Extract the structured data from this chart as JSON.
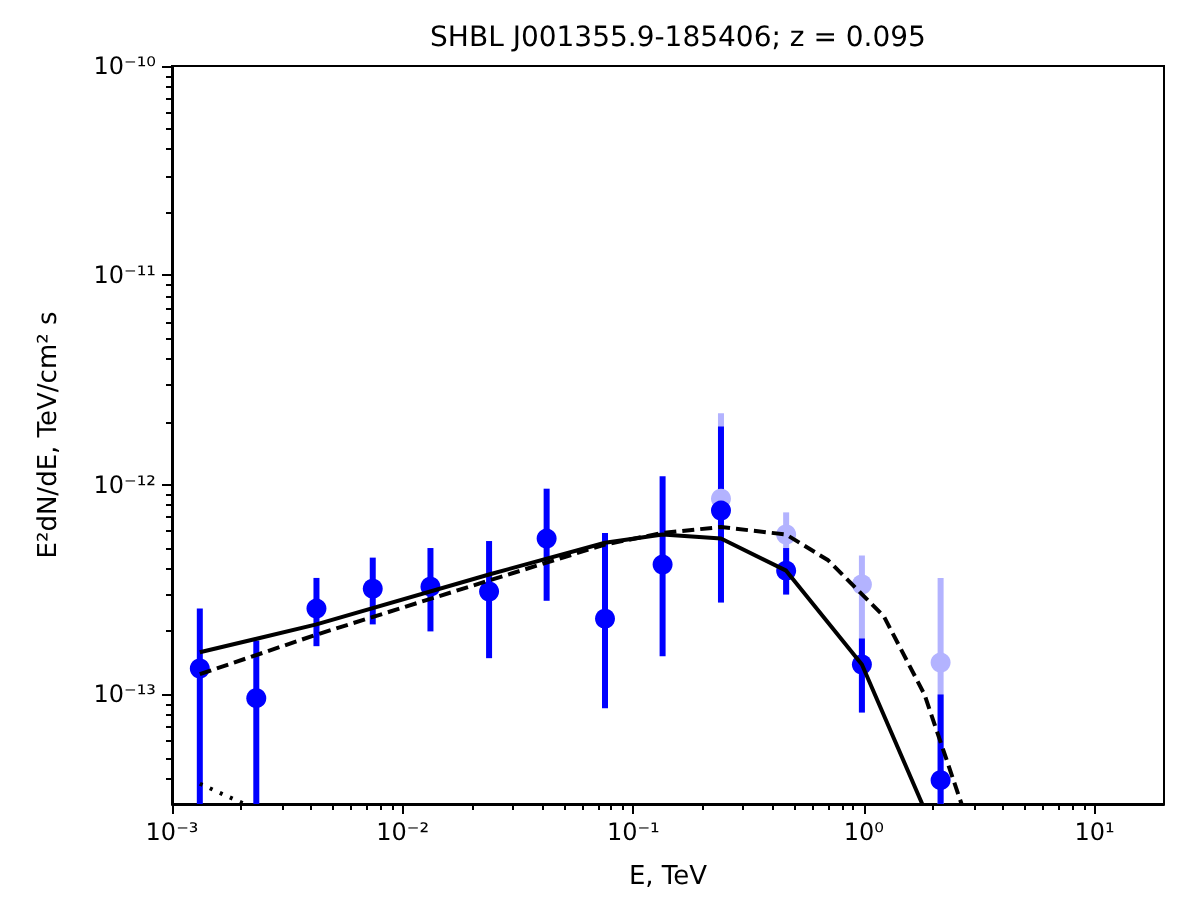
{
  "chart_data": {
    "type": "scatter",
    "title": "SHBL J001355.9-185406; z = 0.095",
    "xlabel": "E, TeV",
    "ylabel": "E²dN/dE, TeV/cm² s",
    "log": "xy",
    "grid": false,
    "xlim": [
      0.001,
      20
    ],
    "ylim": [
      3e-14,
      1e-10
    ],
    "xticks": [
      {
        "value": 0.001,
        "label": "10⁻³"
      },
      {
        "value": 0.01,
        "label": "10⁻²"
      },
      {
        "value": 0.1,
        "label": "10⁻¹"
      },
      {
        "value": 1,
        "label": "10⁰"
      },
      {
        "value": 10,
        "label": "10¹"
      }
    ],
    "yticks": [
      {
        "value": 1e-13,
        "label": "10⁻¹³"
      },
      {
        "value": 1e-12,
        "label": "10⁻¹²"
      },
      {
        "value": 1e-11,
        "label": "10⁻¹¹"
      },
      {
        "value": 1e-10,
        "label": "10⁻¹⁰"
      }
    ],
    "series": [
      {
        "color": "#b3b3ff",
        "marker": "circle",
        "x": [
          0.24,
          0.46,
          0.98,
          2.15
        ],
        "values": [
          8.6e-13,
          5.8e-13,
          3.35e-13,
          1.42e-13
        ],
        "errors": [
          [
            2.75e-13,
            2.2e-12
          ],
          [
            3e-13,
            7.4e-13
          ],
          [
            8.2e-14,
            4.6e-13
          ],
          [
            3e-14,
            3.6e-13
          ]
        ]
      },
      {
        "color": "#0000ff",
        "marker": "circle",
        "x": [
          0.00132,
          0.00232,
          0.00423,
          0.00742,
          0.0132,
          0.0237,
          0.0421,
          0.0754,
          0.134,
          0.24,
          0.46,
          0.98,
          2.15
        ],
        "values": [
          1.33e-13,
          9.6e-14,
          2.57e-13,
          3.2e-13,
          3.27e-13,
          3.1e-13,
          5.55e-13,
          2.3e-13,
          4.17e-13,
          7.55e-13,
          3.9e-13,
          1.39e-13,
          3.9e-14
        ],
        "errors": [
          [
            3e-14,
            2.57e-13
          ],
          [
            3e-14,
            1.81e-13
          ],
          [
            1.7e-13,
            3.6e-13
          ],
          [
            2.16e-13,
            4.5e-13
          ],
          [
            2e-13,
            5e-13
          ],
          [
            1.49e-13,
            5.4e-13
          ],
          [
            2.8e-13,
            9.6e-13
          ],
          [
            8.6e-14,
            5.9e-13
          ],
          [
            1.52e-13,
            1.1e-12
          ],
          [
            2.75e-13,
            1.9e-12
          ],
          [
            3e-13,
            5e-13
          ],
          [
            8.2e-14,
            1.85e-13
          ],
          [
            3e-14,
            1e-13
          ]
        ]
      },
      {
        "type": "line",
        "color": "#000000",
        "marker": "none",
        "line_style": "solid",
        "x": [
          0.00132,
          0.00423,
          0.0237,
          0.0754,
          0.134,
          0.24,
          0.46,
          0.98,
          1.79
        ],
        "values": [
          1.59e-13,
          2.16e-13,
          3.74e-13,
          5.3e-13,
          5.8e-13,
          5.55e-13,
          3.9e-13,
          1.39e-13,
          3e-14
        ]
      },
      {
        "type": "line",
        "color": "#000000",
        "marker": "none",
        "line_style": "dashed",
        "x": [
          0.00132,
          0.00423,
          0.0237,
          0.0754,
          0.134,
          0.24,
          0.46,
          0.7,
          1.22,
          1.83,
          2.65
        ],
        "values": [
          1.25e-13,
          1.93e-13,
          3.5e-13,
          5.2e-13,
          5.9e-13,
          6.3e-13,
          5.8e-13,
          4.37e-13,
          2.36e-13,
          1e-13,
          3e-14
        ]
      },
      {
        "type": "line",
        "color": "#000000",
        "marker": "none",
        "line_style": "dotted",
        "x": [
          0.00132,
          0.00206
        ],
        "values": [
          3.75e-14,
          3e-14
        ]
      }
    ]
  }
}
